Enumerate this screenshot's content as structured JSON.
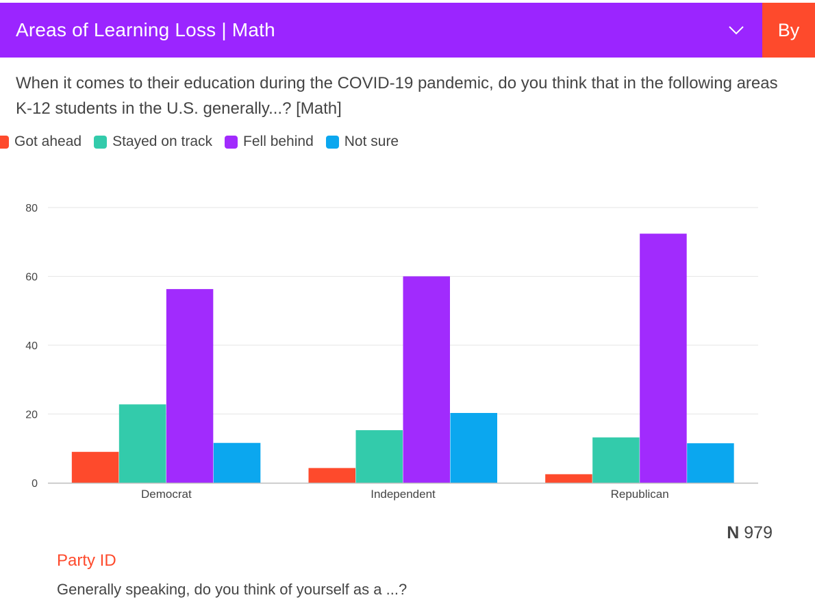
{
  "header": {
    "title": "Areas of Learning Loss | Math",
    "dropdown_icon": "chevron-down-icon",
    "by_label": "By",
    "bg_color": "#9b25ff",
    "by_color": "#fe4a2c"
  },
  "question": "When it comes to their education during the COVID-19 pandemic, do you think that in the following areas K-12 students in the U.S. generally...? [Math]",
  "legend": [
    {
      "label": "Got ahead",
      "color": "#fe4a2c"
    },
    {
      "label": "Stayed on track",
      "color": "#33cbab"
    },
    {
      "label": "Fell behind",
      "color": "#a12bfd"
    },
    {
      "label": "Not sure",
      "color": "#0ba7ef"
    }
  ],
  "chart_data": {
    "type": "bar",
    "categories": [
      "Democrat",
      "Independent",
      "Republican"
    ],
    "series": [
      {
        "name": "Got ahead",
        "color": "#fe4a2c",
        "values": [
          9,
          4.3,
          2.5
        ]
      },
      {
        "name": "Stayed on track",
        "color": "#33cbab",
        "values": [
          22.8,
          15.3,
          13.2
        ]
      },
      {
        "name": "Fell behind",
        "color": "#a12bfd",
        "values": [
          56.3,
          60,
          72.4
        ]
      },
      {
        "name": "Not sure",
        "color": "#0ba7ef",
        "values": [
          11.6,
          20.3,
          11.5
        ]
      }
    ],
    "yticks": [
      "0",
      "20",
      "40",
      "60",
      "80"
    ],
    "ylim": [
      0,
      80
    ],
    "grid": true
  },
  "footer": {
    "n_prefix": "N",
    "n_value": "979",
    "variable_name": "Party ID",
    "variable_question": "Generally speaking, do you think of yourself as a ...?"
  }
}
